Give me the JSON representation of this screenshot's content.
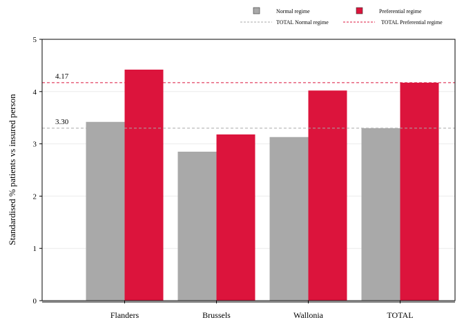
{
  "chart_data": {
    "type": "bar",
    "categories": [
      "Flanders",
      "Brussels",
      "Wallonia",
      "TOTAL"
    ],
    "series": [
      {
        "name": "Normal regime",
        "color": "#a9a9a9",
        "values": [
          3.42,
          2.85,
          3.13,
          3.3
        ]
      },
      {
        "name": "Preferential regime",
        "color": "#dc143c",
        "values": [
          4.42,
          3.18,
          4.02,
          4.17
        ]
      }
    ],
    "reference_lines": [
      {
        "name": "TOTAL Normal regime",
        "value": 3.3,
        "label": "3.30",
        "color": "#a9a9a9",
        "style": "dashed"
      },
      {
        "name": "TOTAL Preferential regime",
        "value": 4.17,
        "label": "4.17",
        "color": "#dc143c",
        "style": "dashed"
      }
    ],
    "ylabel": "Standardised % patients vs insured person",
    "xlabel": "",
    "ylim": [
      0,
      5
    ],
    "yticks": [
      "0",
      "1",
      "2",
      "3",
      "4",
      "5"
    ],
    "grid": true,
    "legend_position": "top"
  }
}
